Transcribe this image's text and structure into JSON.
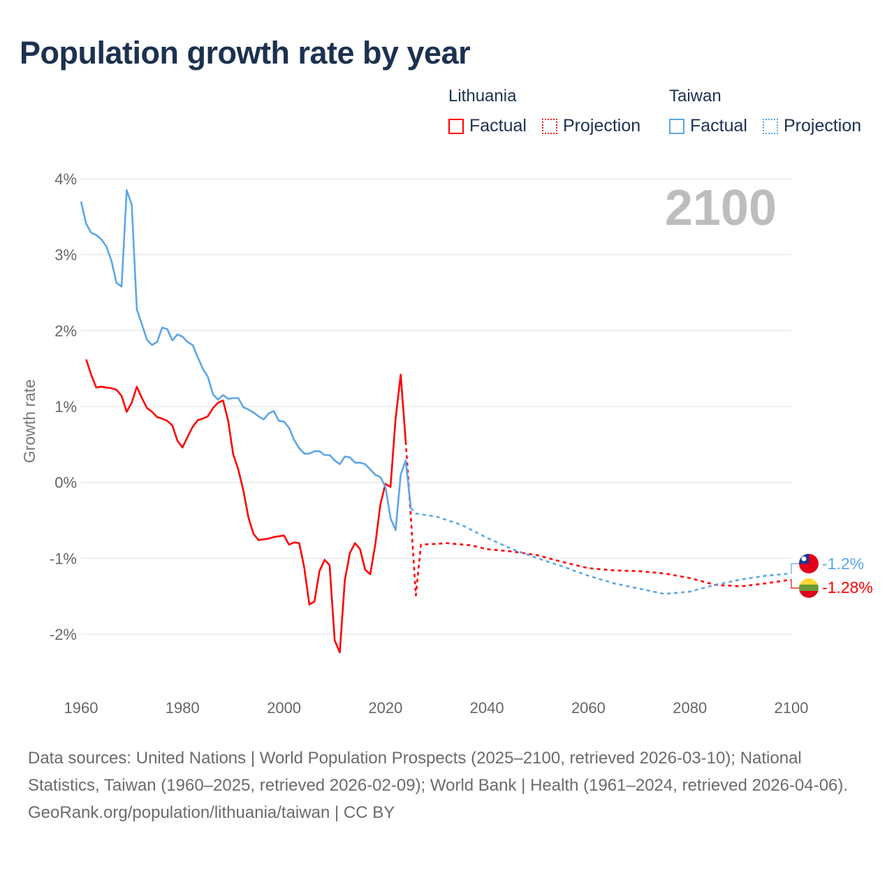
{
  "title": "Population growth rate by year",
  "legend": {
    "groups": [
      {
        "name": "Lithuania",
        "color": "#ff0000",
        "factual": "Factual",
        "projection": "Projection"
      },
      {
        "name": "Taiwan",
        "color": "#5ca6ea",
        "factual": "Factual",
        "projection": "Projection"
      }
    ]
  },
  "year_label": "2100",
  "end_labels": {
    "taiwan": "-1.2%",
    "lithuania": "-1.28%"
  },
  "flags": {
    "taiwan": "taiwan-flag-icon",
    "lithuania": "lithuania-flag-icon"
  },
  "footer": {
    "sources": "Data sources: United Nations | World Population Prospects (2025–2100, retrieved 2026-03-10); National Statistics, Taiwan (1960–2025, retrieved 2026-02-09); World Bank | Health (1961–2024, retrieved 2026-04-06).",
    "credit": "GeoRank.org/population/lithuania/taiwan | CC BY"
  },
  "chart_data": {
    "type": "line",
    "title": "Population growth rate by year",
    "xlabel": "",
    "ylabel": "Growth rate",
    "xlim": [
      1960,
      2100
    ],
    "ylim": [
      -2.5,
      4
    ],
    "x_ticks": [
      "1960",
      "1980",
      "2000",
      "2020",
      "2040",
      "2060",
      "2080",
      "2100"
    ],
    "y_ticks": [
      {
        "v": 4,
        "label": "4%"
      },
      {
        "v": 3,
        "label": "3%"
      },
      {
        "v": 2,
        "label": "2%"
      },
      {
        "v": 1,
        "label": "1%"
      },
      {
        "v": 0,
        "label": "0%"
      },
      {
        "v": -1,
        "label": "-1%"
      },
      {
        "v": -2,
        "label": "-2%"
      }
    ],
    "grid": true,
    "legend_position": "top-right",
    "series": [
      {
        "name": "Lithuania Factual",
        "color": "#ff0000",
        "dashed": false,
        "x": [
          1961,
          1962,
          1963,
          1964,
          1965,
          1966,
          1967,
          1968,
          1969,
          1970,
          1971,
          1972,
          1973,
          1974,
          1975,
          1976,
          1977,
          1978,
          1979,
          1980,
          1981,
          1982,
          1983,
          1984,
          1985,
          1986,
          1987,
          1988,
          1989,
          1990,
          1991,
          1992,
          1993,
          1994,
          1995,
          1996,
          1997,
          1998,
          1999,
          2000,
          2001,
          2002,
          2003,
          2004,
          2005,
          2006,
          2007,
          2008,
          2009,
          2010,
          2011,
          2012,
          2013,
          2014,
          2015,
          2016,
          2017,
          2018,
          2019,
          2020,
          2021,
          2022,
          2023,
          2024
        ],
        "y": [
          1.62,
          1.42,
          1.25,
          1.26,
          1.25,
          1.24,
          1.22,
          1.14,
          0.93,
          1.05,
          1.26,
          1.11,
          0.98,
          0.93,
          0.86,
          0.84,
          0.81,
          0.75,
          0.55,
          0.46,
          0.6,
          0.73,
          0.82,
          0.84,
          0.87,
          0.98,
          1.05,
          1.08,
          0.81,
          0.37,
          0.17,
          -0.11,
          -0.46,
          -0.68,
          -0.76,
          -0.75,
          -0.74,
          -0.72,
          -0.71,
          -0.7,
          -0.82,
          -0.79,
          -0.8,
          -1.12,
          -1.61,
          -1.57,
          -1.17,
          -1.02,
          -1.09,
          -2.08,
          -2.24,
          -1.29,
          -0.93,
          -0.8,
          -0.88,
          -1.15,
          -1.21,
          -0.82,
          -0.29,
          -0.02,
          -0.06,
          0.84,
          1.42,
          0.54
        ]
      },
      {
        "name": "Lithuania Projection",
        "color": "#ff0000",
        "dashed": true,
        "x": [
          2024,
          2025,
          2026,
          2027,
          2030,
          2032,
          2037,
          2040,
          2045,
          2050,
          2055,
          2060,
          2065,
          2070,
          2075,
          2080,
          2085,
          2090,
          2095,
          2100
        ],
        "y": [
          0.54,
          -0.45,
          -1.49,
          -0.82,
          -0.81,
          -0.8,
          -0.83,
          -0.88,
          -0.91,
          -0.96,
          -1.05,
          -1.13,
          -1.16,
          -1.17,
          -1.2,
          -1.26,
          -1.35,
          -1.37,
          -1.33,
          -1.28
        ]
      },
      {
        "name": "Taiwan Factual",
        "color": "#5ca6ea",
        "dashed": false,
        "x": [
          1960,
          1961,
          1962,
          1963,
          1964,
          1965,
          1966,
          1967,
          1968,
          1969,
          1970,
          1971,
          1972,
          1973,
          1974,
          1975,
          1976,
          1977,
          1978,
          1979,
          1980,
          1981,
          1982,
          1983,
          1984,
          1985,
          1986,
          1987,
          1988,
          1989,
          1990,
          1991,
          1992,
          1993,
          1994,
          1995,
          1996,
          1997,
          1998,
          1999,
          2000,
          2001,
          2002,
          2003,
          2004,
          2005,
          2006,
          2007,
          2008,
          2009,
          2010,
          2011,
          2012,
          2013,
          2014,
          2015,
          2016,
          2017,
          2018,
          2019,
          2020,
          2021,
          2022,
          2023,
          2024,
          2025
        ],
        "y": [
          3.7,
          3.41,
          3.29,
          3.26,
          3.2,
          3.11,
          2.92,
          2.63,
          2.58,
          3.85,
          3.66,
          2.28,
          2.08,
          1.88,
          1.81,
          1.85,
          2.04,
          2.02,
          1.87,
          1.95,
          1.92,
          1.85,
          1.81,
          1.65,
          1.5,
          1.39,
          1.16,
          1.09,
          1.15,
          1.1,
          1.11,
          1.11,
          0.99,
          0.96,
          0.92,
          0.87,
          0.83,
          0.91,
          0.94,
          0.81,
          0.8,
          0.72,
          0.56,
          0.45,
          0.38,
          0.38,
          0.41,
          0.41,
          0.36,
          0.36,
          0.29,
          0.24,
          0.34,
          0.33,
          0.26,
          0.26,
          0.24,
          0.17,
          0.1,
          0.07,
          -0.06,
          -0.47,
          -0.63,
          0.1,
          0.29,
          -0.34
        ]
      },
      {
        "name": "Taiwan Projection",
        "color": "#5ca6ea",
        "dashed": true,
        "x": [
          2025,
          2026,
          2030,
          2035,
          2040,
          2045,
          2050,
          2055,
          2060,
          2065,
          2070,
          2075,
          2080,
          2085,
          2090,
          2095,
          2100
        ],
        "y": [
          -0.34,
          -0.41,
          -0.45,
          -0.56,
          -0.73,
          -0.88,
          -1.0,
          -1.11,
          -1.23,
          -1.33,
          -1.4,
          -1.47,
          -1.44,
          -1.35,
          -1.28,
          -1.23,
          -1.2
        ]
      }
    ]
  }
}
